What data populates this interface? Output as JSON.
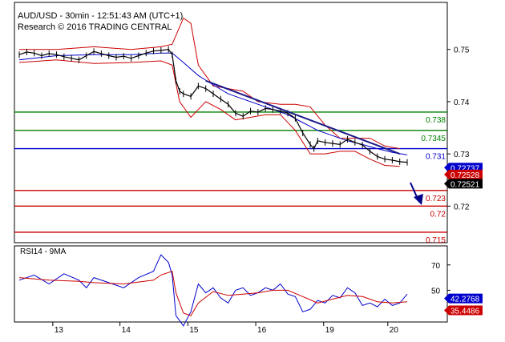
{
  "header": {
    "title": "AUD/USD - 30min - 12:51:43 AM (UTC+1)",
    "subtitle": "Research © 2016 TRADING CENTRAL"
  },
  "colors": {
    "price_series": "#000000",
    "bollinger": "#cc0000",
    "ma": "#0000cc",
    "trendline": "#1a1a8c",
    "resistance_green": "#008000",
    "pivot_blue": "#0000cc",
    "support_red": "#cc0000",
    "rsi": "#0000cc",
    "rsi_ma": "#cc0000",
    "arrow": "#00008b"
  },
  "icons": {
    "forecast_arrow": "down-arrow-icon"
  },
  "chart_data": [
    {
      "type": "line",
      "panel": "price",
      "ylim": [
        0.713,
        0.759
      ],
      "y_ticks": [
        0.75,
        0.74,
        0.73,
        0.72
      ],
      "y_tick_labels": [
        "0.75",
        "0.74",
        "0.73",
        "0.72"
      ],
      "x_tick_labels": [
        "13",
        "14",
        "15",
        "16",
        "19",
        "20"
      ],
      "x_tick_positions": [
        4.5,
        13.5,
        22.6,
        31.7,
        40.8,
        49.4
      ],
      "xlim": [
        0,
        54
      ],
      "price_points": [
        [
          0,
          0.749
        ],
        [
          1,
          0.7495
        ],
        [
          2,
          0.7493
        ],
        [
          3,
          0.7488
        ],
        [
          4,
          0.7492
        ],
        [
          5,
          0.749
        ],
        [
          6,
          0.7486
        ],
        [
          7,
          0.7483
        ],
        [
          8,
          0.748
        ],
        [
          9,
          0.7488
        ],
        [
          10,
          0.7496
        ],
        [
          11,
          0.7492
        ],
        [
          12,
          0.7488
        ],
        [
          13,
          0.7485
        ],
        [
          14,
          0.7487
        ],
        [
          15,
          0.7483
        ],
        [
          16,
          0.7488
        ],
        [
          17,
          0.7493
        ],
        [
          18,
          0.7497
        ],
        [
          19,
          0.7498
        ],
        [
          20,
          0.75
        ],
        [
          20.5,
          0.749
        ],
        [
          21,
          0.744
        ],
        [
          21.5,
          0.742
        ],
        [
          22,
          0.7415
        ],
        [
          23,
          0.741
        ],
        [
          24,
          0.743
        ],
        [
          25,
          0.7425
        ],
        [
          26,
          0.7415
        ],
        [
          27,
          0.7405
        ],
        [
          28,
          0.7395
        ],
        [
          29,
          0.7378
        ],
        [
          30,
          0.7372
        ],
        [
          31,
          0.7382
        ],
        [
          32,
          0.738
        ],
        [
          33,
          0.7387
        ],
        [
          34,
          0.7385
        ],
        [
          35,
          0.7382
        ],
        [
          36,
          0.7378
        ],
        [
          37,
          0.7368
        ],
        [
          38,
          0.734
        ],
        [
          39,
          0.7318
        ],
        [
          39.5,
          0.731
        ],
        [
          40,
          0.7325
        ],
        [
          41,
          0.7322
        ],
        [
          42,
          0.732
        ],
        [
          43,
          0.7318
        ],
        [
          44,
          0.7328
        ],
        [
          45,
          0.7322
        ],
        [
          46,
          0.7317
        ],
        [
          47,
          0.7305
        ],
        [
          48,
          0.7295
        ],
        [
          49,
          0.729
        ],
        [
          50,
          0.7288
        ],
        [
          51,
          0.7285
        ],
        [
          52,
          0.7284
        ]
      ],
      "bollinger_upper": [
        [
          0,
          0.75
        ],
        [
          5,
          0.75
        ],
        [
          10,
          0.7505
        ],
        [
          15,
          0.75
        ],
        [
          19,
          0.7505
        ],
        [
          20.5,
          0.751
        ],
        [
          22,
          0.756
        ],
        [
          23,
          0.755
        ],
        [
          24,
          0.747
        ],
        [
          26,
          0.743
        ],
        [
          28,
          0.7425
        ],
        [
          30,
          0.742
        ],
        [
          32,
          0.74
        ],
        [
          35,
          0.7395
        ],
        [
          37,
          0.7395
        ],
        [
          39,
          0.739
        ],
        [
          41,
          0.7355
        ],
        [
          43,
          0.733
        ],
        [
          45,
          0.733
        ],
        [
          47,
          0.733
        ],
        [
          49,
          0.7315
        ],
        [
          51,
          0.731
        ]
      ],
      "bollinger_lower": [
        [
          0,
          0.7475
        ],
        [
          5,
          0.748
        ],
        [
          10,
          0.7473
        ],
        [
          15,
          0.7475
        ],
        [
          19,
          0.7478
        ],
        [
          20.5,
          0.747
        ],
        [
          21.5,
          0.74
        ],
        [
          23,
          0.737
        ],
        [
          25,
          0.74
        ],
        [
          27,
          0.7385
        ],
        [
          29,
          0.7365
        ],
        [
          31,
          0.737
        ],
        [
          33,
          0.7375
        ],
        [
          35,
          0.7375
        ],
        [
          37,
          0.7345
        ],
        [
          39,
          0.73
        ],
        [
          41,
          0.73
        ],
        [
          43,
          0.7305
        ],
        [
          45,
          0.7305
        ],
        [
          47,
          0.729
        ],
        [
          49,
          0.7278
        ],
        [
          51,
          0.7276
        ]
      ],
      "moving_average": [
        [
          0,
          0.748
        ],
        [
          5,
          0.7488
        ],
        [
          10,
          0.749
        ],
        [
          15,
          0.749
        ],
        [
          19,
          0.7493
        ],
        [
          20.5,
          0.7493
        ],
        [
          22,
          0.7475
        ],
        [
          24,
          0.745
        ],
        [
          26,
          0.7432
        ],
        [
          28,
          0.7415
        ],
        [
          30,
          0.7405
        ],
        [
          32,
          0.7395
        ],
        [
          34,
          0.7385
        ],
        [
          36,
          0.7375
        ],
        [
          38,
          0.736
        ],
        [
          40,
          0.7345
        ],
        [
          42,
          0.7335
        ],
        [
          44,
          0.7325
        ],
        [
          46,
          0.7318
        ],
        [
          48,
          0.731
        ],
        [
          50,
          0.7303
        ],
        [
          52,
          0.7298
        ]
      ],
      "trendline": [
        [
          25,
          0.744
        ],
        [
          51,
          0.73
        ]
      ],
      "levels": [
        {
          "value": 0.738,
          "label": "0.738",
          "color": "#008000"
        },
        {
          "value": 0.7345,
          "label": "0.7345",
          "color": "#008000"
        },
        {
          "value": 0.731,
          "label": "0.731",
          "color": "#0000cc"
        },
        {
          "value": 0.723,
          "label": "0.723",
          "color": "#cc0000"
        },
        {
          "value": 0.72,
          "label": "0.72",
          "color": "#cc0000"
        },
        {
          "value": 0.715,
          "label": "0.715",
          "color": "#cc0000"
        }
      ],
      "value_badges": [
        {
          "label": "0.72737",
          "value": 0.72737,
          "bg": "#0000cc",
          "fg": "#ffffff"
        },
        {
          "label": "0.72528",
          "value": 0.72528,
          "bg": "#cc0000",
          "fg": "#ffffff"
        },
        {
          "label": "0.72521",
          "value": 0.72521,
          "bg": "#000000",
          "fg": "#ffffff"
        }
      ]
    },
    {
      "type": "line",
      "panel": "rsi",
      "title": "RSI14 - 9MA",
      "ylim": [
        25,
        85
      ],
      "y_ticks": [
        70,
        50
      ],
      "y_tick_labels": [
        "70",
        "50"
      ],
      "rsi": [
        [
          0,
          58
        ],
        [
          2,
          62
        ],
        [
          4,
          55
        ],
        [
          6,
          63
        ],
        [
          8,
          58
        ],
        [
          9,
          52
        ],
        [
          10,
          60
        ],
        [
          12,
          56
        ],
        [
          14,
          52
        ],
        [
          16,
          60
        ],
        [
          18,
          65
        ],
        [
          19,
          78
        ],
        [
          20,
          72
        ],
        [
          20.5,
          62
        ],
        [
          21,
          30
        ],
        [
          22,
          22
        ],
        [
          23,
          33
        ],
        [
          24,
          55
        ],
        [
          25,
          48
        ],
        [
          26,
          52
        ],
        [
          27,
          44
        ],
        [
          28,
          40
        ],
        [
          29,
          50
        ],
        [
          30,
          52
        ],
        [
          31,
          46
        ],
        [
          32,
          48
        ],
        [
          33,
          52
        ],
        [
          34,
          50
        ],
        [
          35,
          55
        ],
        [
          36,
          47
        ],
        [
          37,
          45
        ],
        [
          38,
          33
        ],
        [
          39,
          35
        ],
        [
          40,
          42
        ],
        [
          41,
          40
        ],
        [
          42,
          46
        ],
        [
          43,
          44
        ],
        [
          44,
          52
        ],
        [
          45,
          48
        ],
        [
          46,
          38
        ],
        [
          47,
          40
        ],
        [
          48,
          37
        ],
        [
          49,
          43
        ],
        [
          50,
          38
        ],
        [
          51,
          40
        ],
        [
          52,
          47
        ]
      ],
      "rsi_ma": [
        [
          0,
          60
        ],
        [
          4,
          58
        ],
        [
          8,
          57
        ],
        [
          10,
          56
        ],
        [
          14,
          55
        ],
        [
          18,
          58
        ],
        [
          19,
          62
        ],
        [
          20.5,
          65
        ],
        [
          21,
          48
        ],
        [
          22,
          32
        ],
        [
          23,
          30
        ],
        [
          24,
          40
        ],
        [
          26,
          49
        ],
        [
          28,
          46
        ],
        [
          30,
          47
        ],
        [
          32,
          48
        ],
        [
          34,
          50
        ],
        [
          36,
          50
        ],
        [
          38,
          45
        ],
        [
          40,
          40
        ],
        [
          42,
          43
        ],
        [
          44,
          46
        ],
        [
          46,
          45
        ],
        [
          48,
          41
        ],
        [
          50,
          40
        ],
        [
          52,
          41
        ]
      ],
      "value_badges": [
        {
          "label": "42.2768",
          "value": 42.2768,
          "bg": "#0000cc",
          "fg": "#ffffff"
        },
        {
          "label": "35.4486",
          "value": 35.4486,
          "bg": "#cc0000",
          "fg": "#ffffff"
        }
      ]
    }
  ]
}
